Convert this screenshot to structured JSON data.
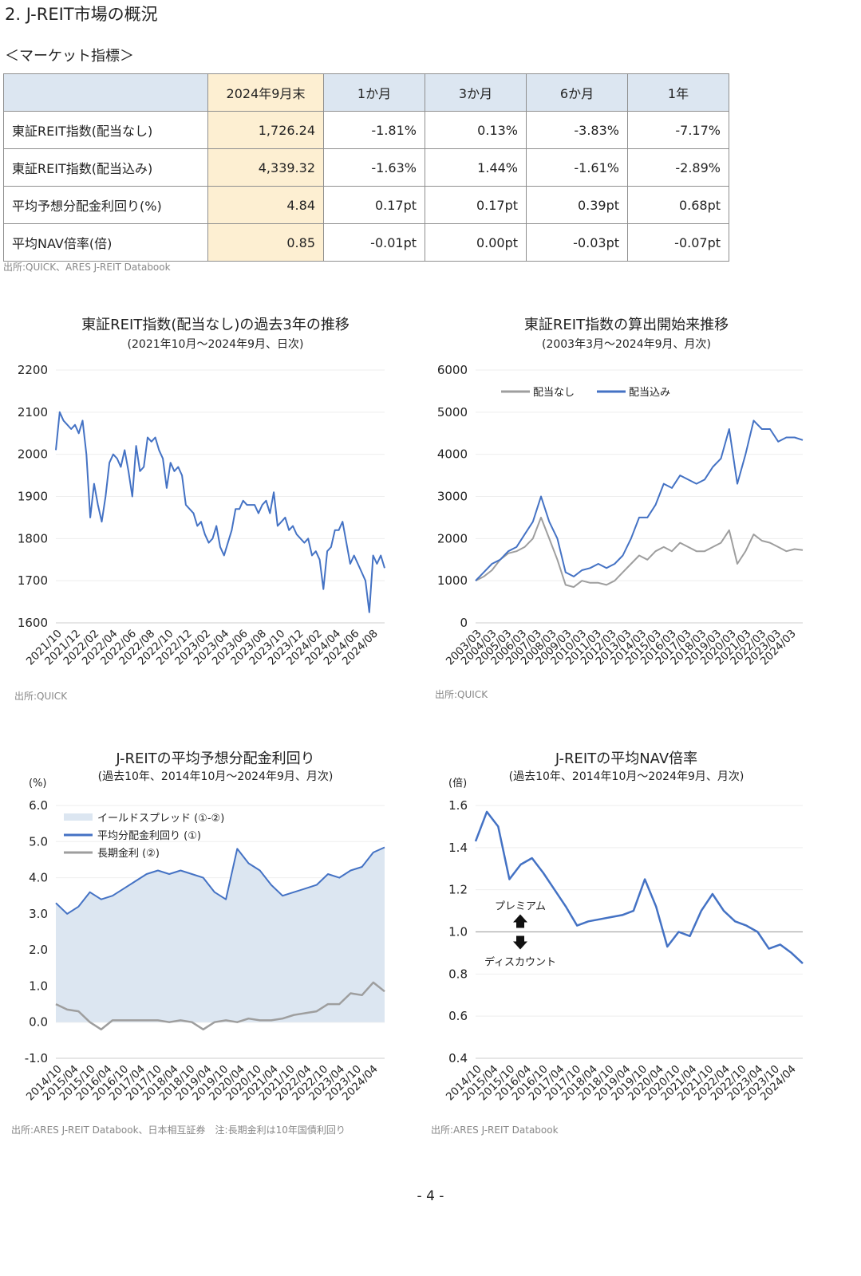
{
  "section_title": "2. J-REIT市場の概況",
  "subsection_title": "＜マーケット指標＞",
  "market_table": {
    "headers": [
      "2024年9月末",
      "1か月",
      "3か月",
      "6か月",
      "1年"
    ],
    "rows": [
      {
        "label": "東証REIT指数(配当なし)",
        "cells": [
          "1,726.24",
          "-1.81%",
          "0.13%",
          "-3.83%",
          "-7.17%"
        ]
      },
      {
        "label": "東証REIT指数(配当込み)",
        "cells": [
          "4,339.32",
          "-1.63%",
          "1.44%",
          "-1.61%",
          "-2.89%"
        ]
      },
      {
        "label": "平均予想分配金利回り(%)",
        "cells": [
          "4.84",
          "0.17pt",
          "0.17pt",
          "0.39pt",
          "0.68pt"
        ]
      },
      {
        "label": "平均NAV倍率(倍)",
        "cells": [
          "0.85",
          "-0.01pt",
          "0.00pt",
          "-0.03pt",
          "-0.07pt"
        ]
      }
    ],
    "source": "出所:QUICK、ARES J-REIT Databook"
  },
  "colors": {
    "blue": "#4472c4",
    "gray": "#9e9e9e",
    "fill": "#dce6f1",
    "grid": "#eeeeee",
    "ref": "#aaaaaa"
  },
  "chart_data": [
    {
      "type": "line",
      "title": "東証REIT指数(配当なし)の過去3年の推移",
      "subtitle": "(2021年10月～2024年9月、日次)",
      "ylim": [
        1600,
        2200
      ],
      "yticks": [
        "2200",
        "2100",
        "2000",
        "1900",
        "1800",
        "1700",
        "1600"
      ],
      "xticks": [
        "2021/10",
        "2021/12",
        "2022/02",
        "2022/04",
        "2022/06",
        "2022/08",
        "2022/10",
        "2022/12",
        "2023/02",
        "2023/04",
        "2023/06",
        "2023/08",
        "2023/10",
        "2023/12",
        "2024/02",
        "2024/04",
        "2024/06",
        "2024/08"
      ],
      "series": [
        {
          "name": "東証REIT指数",
          "values": [
            2010,
            2100,
            2080,
            2070,
            2060,
            2070,
            2050,
            2080,
            2000,
            1850,
            1930,
            1880,
            1840,
            1900,
            1980,
            2000,
            1990,
            1970,
            2010,
            1960,
            1900,
            2020,
            1960,
            1970,
            2040,
            2030,
            2040,
            2010,
            1990,
            1920,
            1980,
            1960,
            1970,
            1950,
            1880,
            1870,
            1860,
            1830,
            1840,
            1810,
            1790,
            1800,
            1830,
            1780,
            1760,
            1790,
            1820,
            1870,
            1870,
            1890,
            1880,
            1880,
            1880,
            1860,
            1880,
            1890,
            1860,
            1910,
            1830,
            1840,
            1850,
            1820,
            1830,
            1810,
            1800,
            1790,
            1800,
            1760,
            1770,
            1750,
            1680,
            1770,
            1780,
            1820,
            1820,
            1840,
            1790,
            1740,
            1760,
            1740,
            1720,
            1700,
            1625,
            1760,
            1740,
            1760,
            1730
          ]
        }
      ]
    },
    {
      "type": "line",
      "title": "東証REIT指数の算出開始来推移",
      "subtitle": "(2003年3月～2024年9月、月次)",
      "ylim": [
        0,
        6000
      ],
      "yticks": [
        "6000",
        "5000",
        "4000",
        "3000",
        "2000",
        "1000",
        "0"
      ],
      "xticks": [
        "2003/03",
        "2004/03",
        "2005/03",
        "2006/03",
        "2007/03",
        "2008/03",
        "2009/03",
        "2010/03",
        "2011/03",
        "2012/03",
        "2013/03",
        "2014/03",
        "2015/03",
        "2016/03",
        "2017/03",
        "2018/03",
        "2019/03",
        "2020/03",
        "2021/03",
        "2022/03",
        "2023/03",
        "2024/03"
      ],
      "legend": {
        "position": "top",
        "labels": [
          "配当なし",
          "配当込み"
        ]
      },
      "series": [
        {
          "name": "配当なし",
          "values": [
            1000,
            1100,
            1250,
            1500,
            1650,
            1700,
            1800,
            2000,
            2500,
            2000,
            1500,
            900,
            850,
            1000,
            950,
            950,
            900,
            1000,
            1200,
            1400,
            1600,
            1500,
            1700,
            1800,
            1700,
            1900,
            1800,
            1700,
            1700,
            1800,
            1900,
            2200,
            1400,
            1700,
            2100,
            1950,
            1900,
            1800,
            1700,
            1750,
            1726
          ]
        },
        {
          "name": "配当込み",
          "values": [
            1000,
            1200,
            1400,
            1500,
            1700,
            1800,
            2100,
            2400,
            3000,
            2400,
            2000,
            1200,
            1100,
            1250,
            1300,
            1400,
            1300,
            1400,
            1600,
            2000,
            2500,
            2500,
            2800,
            3300,
            3200,
            3500,
            3400,
            3300,
            3400,
            3700,
            3900,
            4600,
            3300,
            4000,
            4800,
            4600,
            4600,
            4300,
            4400,
            4400,
            4339
          ]
        }
      ]
    },
    {
      "type": "area",
      "title": "J-REITの平均予想分配金利回り",
      "subtitle": "(過去10年、2014年10月～2024年9月、月次)",
      "ylabel": "(%)",
      "ylim": [
        -1.0,
        6.0
      ],
      "yticks": [
        "6.0",
        "5.0",
        "4.0",
        "3.0",
        "2.0",
        "1.0",
        "0.0",
        "-1.0"
      ],
      "xticks": [
        "2014/10",
        "2015/04",
        "2015/10",
        "2016/04",
        "2016/10",
        "2017/04",
        "2017/10",
        "2018/04",
        "2018/10",
        "2019/04",
        "2019/10",
        "2020/04",
        "2020/10",
        "2021/04",
        "2021/10",
        "2022/04",
        "2022/10",
        "2023/04",
        "2023/10",
        "2024/04"
      ],
      "legend": {
        "position": "top-left",
        "labels": [
          "イールドスプレッド (①-②)",
          "平均分配金利回り (①)",
          "長期金利 (②)"
        ]
      },
      "series": [
        {
          "name": "平均分配金利回り (①)",
          "values": [
            3.3,
            3.0,
            3.2,
            3.6,
            3.4,
            3.5,
            3.7,
            3.9,
            4.1,
            4.2,
            4.1,
            4.2,
            4.1,
            4.0,
            3.6,
            3.4,
            4.8,
            4.4,
            4.2,
            3.8,
            3.5,
            3.6,
            3.7,
            3.8,
            4.1,
            4.0,
            4.2,
            4.3,
            4.7,
            4.84
          ]
        },
        {
          "name": "長期金利 (②)",
          "values": [
            0.5,
            0.35,
            0.3,
            0.0,
            -0.2,
            0.05,
            0.05,
            0.05,
            0.05,
            0.05,
            0.0,
            0.05,
            0.0,
            -0.2,
            0.0,
            0.05,
            0.0,
            0.1,
            0.05,
            0.05,
            0.1,
            0.2,
            0.25,
            0.3,
            0.5,
            0.5,
            0.8,
            0.75,
            1.1,
            0.85
          ]
        }
      ]
    },
    {
      "type": "line",
      "title": "J-REITの平均NAV倍率",
      "subtitle": "(過去10年、2014年10月～2024年9月、月次)",
      "ylabel": "(倍)",
      "ylim": [
        0.4,
        1.6
      ],
      "yticks": [
        "1.6",
        "1.4",
        "1.2",
        "1.0",
        "0.8",
        "0.6",
        "0.4"
      ],
      "xticks": [
        "2014/10",
        "2015/04",
        "2015/10",
        "2016/04",
        "2016/10",
        "2017/04",
        "2017/10",
        "2018/04",
        "2018/10",
        "2019/04",
        "2019/10",
        "2020/04",
        "2020/10",
        "2021/04",
        "2021/10",
        "2022/04",
        "2022/10",
        "2023/04",
        "2023/10",
        "2024/04"
      ],
      "annotations": {
        "up": "プレミアム",
        "down": "ディスカウント",
        "reference_value": 1.0
      },
      "series": [
        {
          "name": "平均NAV倍率",
          "values": [
            1.43,
            1.57,
            1.5,
            1.25,
            1.32,
            1.35,
            1.28,
            1.2,
            1.12,
            1.03,
            1.05,
            1.06,
            1.07,
            1.08,
            1.1,
            1.25,
            1.12,
            0.93,
            1.0,
            0.98,
            1.1,
            1.18,
            1.1,
            1.05,
            1.03,
            1.0,
            0.92,
            0.94,
            0.9,
            0.85
          ]
        }
      ]
    }
  ],
  "chart_sources": [
    "出所:QUICK",
    "出所:QUICK",
    "出所:ARES J-REIT Databook、日本相互証券　注:長期金利は10年国債利回り",
    "出所:ARES J-REIT Databook"
  ],
  "page_number": "- 4 -"
}
